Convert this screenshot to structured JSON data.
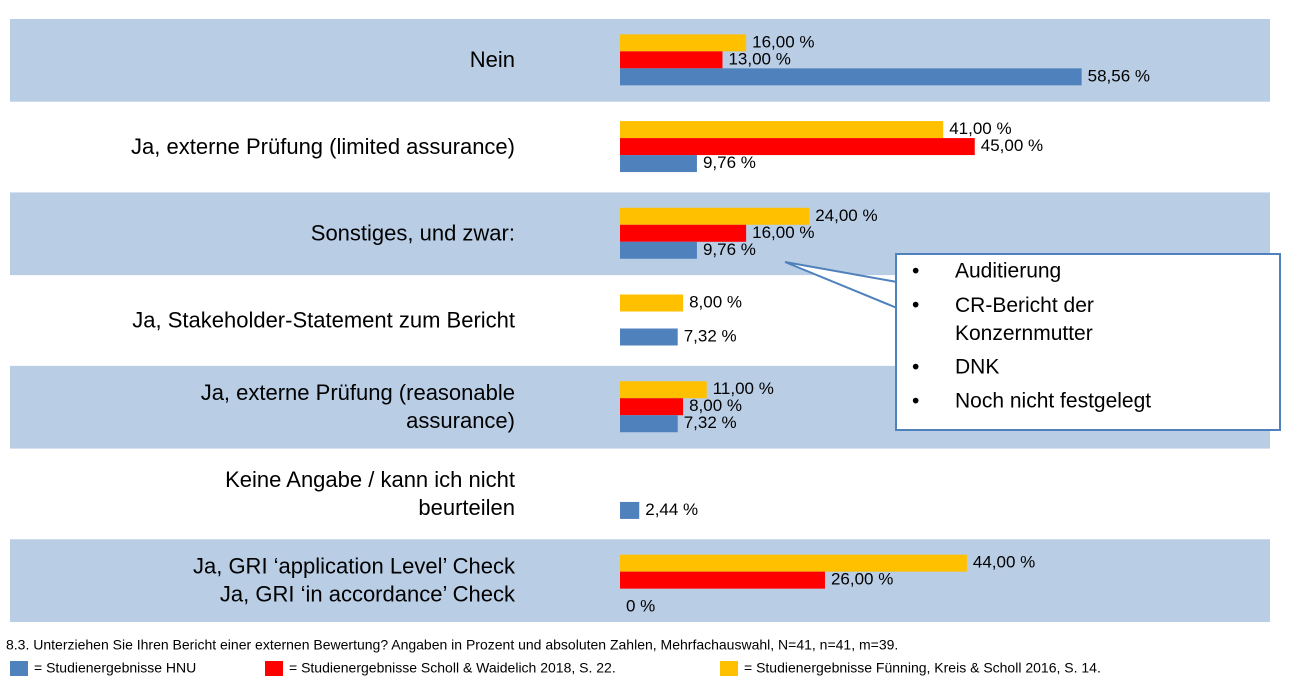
{
  "chart_data": {
    "type": "bar",
    "orientation": "horizontal",
    "categories": [
      "Nein",
      "Ja, externe Prüfung (limited assurance)",
      "Sonstiges, und zwar:",
      "Ja, Stakeholder-Statement zum Bericht",
      "Ja, externe Prüfung (reasonable\nassurance)",
      "Keine Angabe / kann ich nicht\nbeurteilen",
      "Ja, GRI ‘application Level’ Check\nJa, GRI ‘in accordance’ Check"
    ],
    "series": [
      {
        "name": "= Studienergebnisse Fünning, Kreis & Scholl 2016, S. 14.",
        "color": "#ffc000",
        "values": [
          16,
          41,
          24,
          8,
          11,
          null,
          44
        ],
        "value_labels": [
          "16,00 %",
          "41,00 %",
          "24,00 %",
          "8,00 %",
          "11,00 %",
          null,
          "44,00 %"
        ]
      },
      {
        "name": "= Studienergebnisse Scholl & Waidelich 2018, S. 22.",
        "color": "#ff0000",
        "values": [
          13,
          45,
          16,
          null,
          8,
          null,
          26
        ],
        "value_labels": [
          "13,00 %",
          "45,00 %",
          "16,00 %",
          null,
          "8,00 %",
          null,
          "26,00 %"
        ]
      },
      {
        "name": "= Studienergebnisse HNU",
        "color": "#4f81bd",
        "values": [
          58.56,
          9.76,
          9.76,
          7.32,
          7.32,
          2.44,
          0
        ],
        "value_labels": [
          "58,56 %",
          "9,76 %",
          "9,76 %",
          "7,32 %",
          "7,32 %",
          "2,44 %",
          "0 %"
        ]
      }
    ],
    "xlim": [
      0,
      60
    ],
    "annotation": [
      "Auditierung",
      "CR-Bericht der\nKonzernmutter",
      "DNK",
      "Noch nicht festgelegt"
    ],
    "footnote": "8.3. Unterziehen Sie Ihren Bericht einer externen Bewertung? Angaben in Prozent und absoluten Zahlen, Mehrfachauswahl, N=41, n=41, m=39.",
    "legend_order": [
      2,
      1,
      0
    ]
  }
}
